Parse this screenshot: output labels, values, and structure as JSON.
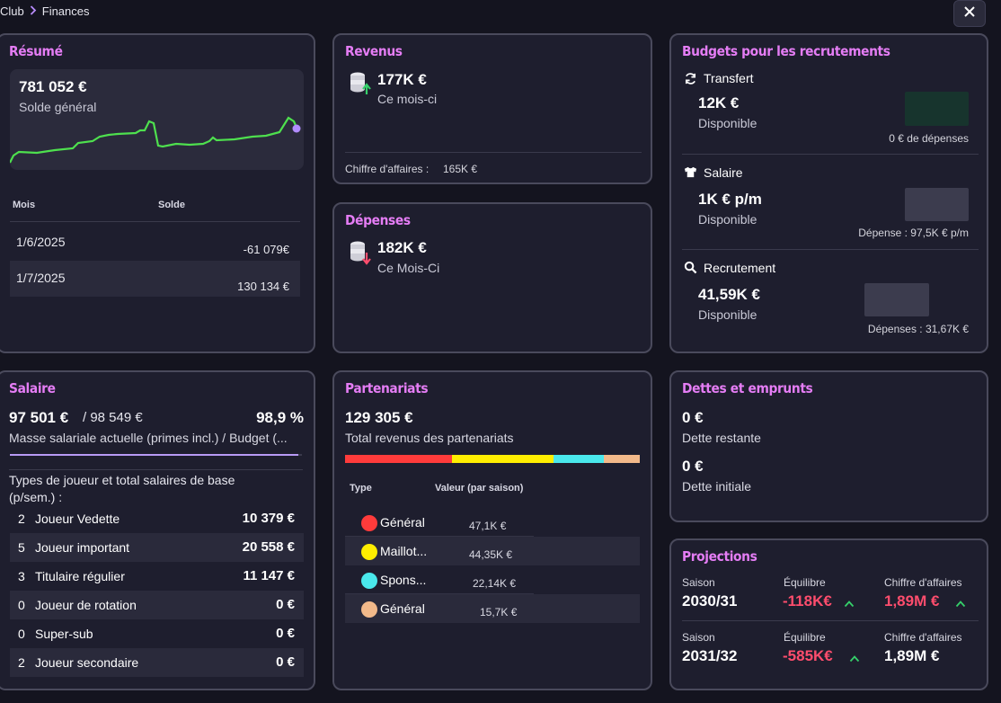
{
  "breadcrumb": {
    "parent": "Club",
    "current": "Finances"
  },
  "resume": {
    "title": "Résumé",
    "balance": "781 052 €",
    "balance_label": "Solde général",
    "table_headers": {
      "month": "Mois",
      "balance": "Solde"
    },
    "rows": [
      {
        "month": "1/6/2025",
        "balance": "-61 079€"
      },
      {
        "month": "1/7/2025",
        "balance": "130 134 €"
      }
    ]
  },
  "revenus": {
    "title": "Revenus",
    "value": "177K €",
    "period": "Ce mois-ci",
    "turnover_label": "Chiffre d'affaires :",
    "turnover_value": "165K €"
  },
  "depenses": {
    "title": "Dépenses",
    "value": "182K €",
    "period": "Ce Mois-Ci"
  },
  "budgets": {
    "title": "Budgets pour les recrutements",
    "items": [
      {
        "label": "Transfert",
        "value": "12K €",
        "status": "Disponible",
        "note": "0 € de dépenses"
      },
      {
        "label": "Salaire",
        "value": "1K € p/m",
        "status": "Disponible",
        "note": "Dépense : 97,5K € p/m"
      },
      {
        "label": "Recrutement",
        "value": "41,59K €",
        "status": "Disponible",
        "note": "Dépenses : 31,67K €"
      }
    ]
  },
  "salaire": {
    "title": "Salaire",
    "current": "97 501 €",
    "budget": "/ 98 549 €",
    "percent": "98,9 %",
    "caption": "Masse salariale actuelle (primes incl.) / Budget (...",
    "types_title": "Types de joueur et total salaires de base (p/sem.) :",
    "rows": [
      {
        "count": "2",
        "label": "Joueur Vedette",
        "amount": "10 379 €"
      },
      {
        "count": "5",
        "label": "Joueur important",
        "amount": "20 558 €"
      },
      {
        "count": "3",
        "label": "Titulaire régulier",
        "amount": "11 147 €"
      },
      {
        "count": "0",
        "label": "Joueur de rotation",
        "amount": "0 €"
      },
      {
        "count": "0",
        "label": "Super-sub",
        "amount": "0 €"
      },
      {
        "count": "2",
        "label": "Joueur secondaire",
        "amount": "0 €"
      }
    ]
  },
  "partenariats": {
    "title": "Partenariats",
    "total": "129 305 €",
    "total_label": "Total revenus des partenariats",
    "headers": {
      "type": "Type",
      "value": "Valeur (par saison)"
    },
    "rows": [
      {
        "label": "Général",
        "value": "47,1K €",
        "color": "#ff3b3b"
      },
      {
        "label": "Maillot...",
        "value": "44,35K €",
        "color": "#ffee00"
      },
      {
        "label": "Spons...",
        "value": "22,14K €",
        "color": "#4ae8ec"
      },
      {
        "label": "Général",
        "value": "15,7K €",
        "color": "#f2b98a"
      }
    ],
    "shares": [
      0.364,
      0.343,
      0.171,
      0.122
    ]
  },
  "dettes": {
    "title": "Dettes et emprunts",
    "remaining": "0 €",
    "remaining_label": "Dette restante",
    "initial": "0 €",
    "initial_label": "Dette initiale"
  },
  "projections": {
    "title": "Projections",
    "labels": {
      "season": "Saison",
      "balance": "Équilibre",
      "turnover": "Chiffre d'affaires"
    },
    "rows": [
      {
        "season": "2030/31",
        "balance": "-118K€",
        "turnover": "1,89M €"
      },
      {
        "season": "2031/32",
        "balance": "-585K€",
        "turnover": "1,89M €"
      }
    ]
  },
  "colors": {
    "accent": "#e57df5",
    "negative": "#ff4d6d",
    "up": "#35d06a",
    "chart_line": "#4ee04e"
  },
  "icons": [
    "close-icon",
    "coins-up-icon",
    "coins-down-icon",
    "refresh-icon",
    "shirt-icon",
    "search-icon",
    "chevron-up-icon"
  ]
}
